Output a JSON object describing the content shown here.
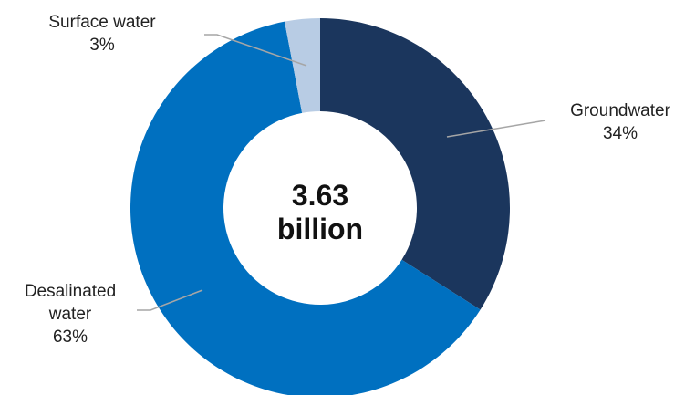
{
  "chart_data": {
    "type": "pie",
    "variant": "donut",
    "center_label": [
      "3.63",
      "billion"
    ],
    "slices": [
      {
        "name": "Groundwater",
        "label_lines": [
          "Groundwater",
          "34%"
        ],
        "value": 34,
        "color": "#1b365d"
      },
      {
        "name": "Desalinated water",
        "label_lines": [
          "Desalinated",
          "water",
          "63%"
        ],
        "value": 63,
        "color": "#0070c0"
      },
      {
        "name": "Surface water",
        "label_lines": [
          "Surface water",
          "3%"
        ],
        "value": 3,
        "color": "#b8cce4"
      }
    ],
    "legend": "none"
  }
}
